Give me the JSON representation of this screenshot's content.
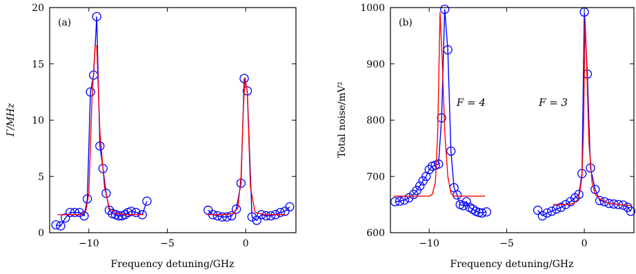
{
  "chart_data": [
    {
      "type": "scatter",
      "panel_label": "(a)",
      "xlabel": "Frequency detuning/GHz",
      "ylabel": "Γ/MHz",
      "xlim": [
        -12.5,
        3.2
      ],
      "ylim": [
        0,
        20
      ],
      "xticks": [
        -10,
        -5,
        0
      ],
      "xtick_labels": [
        "−10",
        "−5",
        "0"
      ],
      "yticks": [
        0,
        5,
        10,
        15,
        20
      ],
      "ytick_labels": [
        "0",
        "5",
        "10",
        "15",
        "20"
      ],
      "annotations": [],
      "series": [
        {
          "style": "line",
          "color": "#0000ff",
          "segments": [
            {
              "x": [
                -12.1,
                -11.8,
                -11.5,
                -11.2,
                -10.9,
                -10.6,
                -10.3,
                -10.1,
                -9.9,
                -9.7,
                -9.5,
                -9.3,
                -9.1,
                -8.9,
                -8.7,
                -8.5,
                -8.3,
                -8.1,
                -7.9,
                -7.7,
                -7.5,
                -7.3,
                -7.0,
                -6.6,
                -6.3
              ],
              "y": [
                0.7,
                0.6,
                1.3,
                1.8,
                1.8,
                1.8,
                1.5,
                3.0,
                12.5,
                14.0,
                19.2,
                7.7,
                5.7,
                3.5,
                2.0,
                1.7,
                1.6,
                1.5,
                1.5,
                1.6,
                1.8,
                1.9,
                1.8,
                1.6,
                2.8
              ]
            },
            {
              "x": [
                -2.4,
                -2.1,
                -1.8,
                -1.5,
                -1.2,
                -0.9,
                -0.6,
                -0.3,
                -0.1,
                0.1,
                0.4,
                0.7,
                1.0,
                1.3,
                1.6,
                1.9,
                2.2,
                2.5,
                2.8
              ],
              "y": [
                2.0,
                1.6,
                1.5,
                1.4,
                1.4,
                1.5,
                2.1,
                4.4,
                13.7,
                12.6,
                1.4,
                1.1,
                1.6,
                1.5,
                1.5,
                1.6,
                1.8,
                1.9,
                2.3
              ]
            }
          ]
        },
        {
          "style": "markers",
          "marker": "circle",
          "color": "#0000ff",
          "segments": [
            {
              "x": [
                -12.1,
                -11.8,
                -11.5,
                -11.2,
                -10.9,
                -10.6,
                -10.3,
                -10.1,
                -9.9,
                -9.7,
                -9.5,
                -9.3,
                -9.1,
                -8.9,
                -8.7,
                -8.5,
                -8.3,
                -8.1,
                -7.9,
                -7.7,
                -7.5,
                -7.3,
                -7.0,
                -6.6,
                -6.3
              ],
              "y": [
                0.7,
                0.6,
                1.3,
                1.8,
                1.8,
                1.8,
                1.5,
                3.0,
                12.5,
                14.0,
                19.2,
                7.7,
                5.7,
                3.5,
                2.0,
                1.7,
                1.6,
                1.5,
                1.5,
                1.6,
                1.8,
                1.9,
                1.8,
                1.6,
                2.8
              ]
            },
            {
              "x": [
                -2.4,
                -2.1,
                -1.8,
                -1.5,
                -1.2,
                -0.9,
                -0.6,
                -0.3,
                -0.1,
                0.1,
                0.4,
                0.7,
                1.0,
                1.3,
                1.6,
                1.9,
                2.2,
                2.5,
                2.8
              ],
              "y": [
                2.0,
                1.6,
                1.5,
                1.4,
                1.4,
                1.5,
                2.1,
                4.4,
                13.7,
                12.6,
                1.4,
                1.1,
                1.6,
                1.5,
                1.5,
                1.6,
                1.8,
                1.9,
                2.3
              ]
            }
          ]
        },
        {
          "style": "line",
          "color": "#ff0000",
          "segments": [
            {
              "x": [
                -12.0,
                -10.5,
                -10.2,
                -10.0,
                -9.8,
                -9.6,
                -9.5,
                -9.3,
                -9.0,
                -8.7,
                -8.3,
                -7.5,
                -6.5
              ],
              "y": [
                1.6,
                1.6,
                1.9,
                3.5,
                12.0,
                16.6,
                16.6,
                9.0,
                4.0,
                2.2,
                1.7,
                1.6,
                1.6
              ]
            },
            {
              "x": [
                -2.5,
                -1.5,
                -0.8,
                -0.5,
                -0.3,
                -0.15,
                -0.05,
                0.1,
                0.3,
                0.6,
                1.2,
                2.5
              ],
              "y": [
                1.6,
                1.6,
                1.7,
                2.2,
                5.0,
                11.0,
                13.8,
                12.5,
                4.0,
                1.8,
                1.6,
                1.6
              ]
            }
          ]
        }
      ]
    },
    {
      "type": "scatter",
      "panel_label": "(b)",
      "xlabel": "Frequency detuning/GHz",
      "ylabel": "Total noise/mV²",
      "xlim": [
        -12.5,
        3.2
      ],
      "ylim": [
        600,
        1000
      ],
      "xticks": [
        -10,
        -5,
        0
      ],
      "xtick_labels": [
        "−10",
        "−5",
        "0"
      ],
      "yticks": [
        600,
        700,
        800,
        900,
        1000
      ],
      "ytick_labels": [
        "600",
        "700",
        "800",
        "900",
        "1000"
      ],
      "annotations": [
        {
          "text": "F = 4",
          "x": -7.3,
          "y": 825
        },
        {
          "text": "F = 3",
          "x": -2.0,
          "y": 825
        }
      ],
      "series": [
        {
          "style": "line",
          "color": "#0000ff",
          "segments": [
            {
              "x": [
                -12.2,
                -11.9,
                -11.6,
                -11.3,
                -11.0,
                -10.8,
                -10.6,
                -10.4,
                -10.2,
                -10.0,
                -9.8,
                -9.6,
                -9.4,
                -9.2,
                -9.0,
                -8.8,
                -8.6,
                -8.4,
                -8.2,
                -8.0,
                -7.8,
                -7.6,
                -7.4,
                -7.2,
                -7.0,
                -6.8,
                -6.6,
                -6.3
              ],
              "y": [
                655,
                656,
                658,
                662,
                668,
                675,
                683,
                692,
                700,
                712,
                718,
                720,
                722,
                804,
                997,
                925,
                745,
                680,
                667,
                650,
                648,
                655,
                645,
                642,
                638,
                636,
                635,
                637
              ]
            },
            {
              "x": [
                -3.0,
                -2.7,
                -2.4,
                -2.1,
                -1.8,
                -1.5,
                -1.2,
                -0.9,
                -0.6,
                -0.35,
                -0.15,
                0.0,
                0.2,
                0.4,
                0.7,
                1.0,
                1.3,
                1.6,
                1.9,
                2.2,
                2.5,
                2.8,
                3.0
              ],
              "y": [
                640,
                630,
                635,
                638,
                642,
                645,
                650,
                655,
                662,
                668,
                705,
                992,
                882,
                715,
                677,
                657,
                655,
                652,
                651,
                650,
                649,
                645,
                638
              ]
            }
          ]
        },
        {
          "style": "markers",
          "marker": "circle",
          "color": "#0000ff",
          "segments": [
            {
              "x": [
                -12.2,
                -11.9,
                -11.6,
                -11.3,
                -11.0,
                -10.8,
                -10.6,
                -10.4,
                -10.2,
                -10.0,
                -9.8,
                -9.6,
                -9.4,
                -9.2,
                -9.0,
                -8.8,
                -8.6,
                -8.4,
                -8.2,
                -8.0,
                -7.8,
                -7.6,
                -7.4,
                -7.2,
                -7.0,
                -6.8,
                -6.6,
                -6.3
              ],
              "y": [
                655,
                656,
                658,
                662,
                668,
                675,
                683,
                692,
                700,
                712,
                718,
                720,
                722,
                804,
                997,
                925,
                745,
                680,
                667,
                650,
                648,
                655,
                645,
                642,
                638,
                636,
                635,
                637
              ]
            },
            {
              "x": [
                -3.0,
                -2.7,
                -2.4,
                -2.1,
                -1.8,
                -1.5,
                -1.2,
                -0.9,
                -0.6,
                -0.35,
                -0.15,
                0.0,
                0.2,
                0.4,
                0.7,
                1.0,
                1.3,
                1.6,
                1.9,
                2.2,
                2.5,
                2.8,
                3.0
              ],
              "y": [
                640,
                630,
                635,
                638,
                642,
                645,
                650,
                655,
                662,
                668,
                705,
                992,
                882,
                715,
                677,
                657,
                655,
                652,
                651,
                650,
                649,
                645,
                638
              ]
            }
          ]
        },
        {
          "style": "line",
          "color": "#ff0000",
          "segments": [
            {
              "x": [
                -12.3,
                -10.0,
                -9.8,
                -9.6,
                -9.45,
                -9.3,
                -9.15,
                -9.0,
                -8.8,
                -8.6,
                -8.4,
                -6.4
              ],
              "y": [
                665,
                665,
                668,
                690,
                780,
                992,
                900,
                780,
                700,
                670,
                665,
                665
              ]
            },
            {
              "x": [
                -2.0,
                -1.0,
                -0.7,
                -0.45,
                -0.3,
                -0.15,
                -0.05,
                0.05,
                0.15,
                0.3,
                0.5,
                0.7,
                1.0,
                1.5,
                2.2,
                3.0
              ],
              "y": [
                650,
                650,
                652,
                658,
                670,
                700,
                780,
                980,
                900,
                760,
                690,
                668,
                660,
                653,
                650,
                648
              ]
            }
          ]
        }
      ]
    }
  ]
}
